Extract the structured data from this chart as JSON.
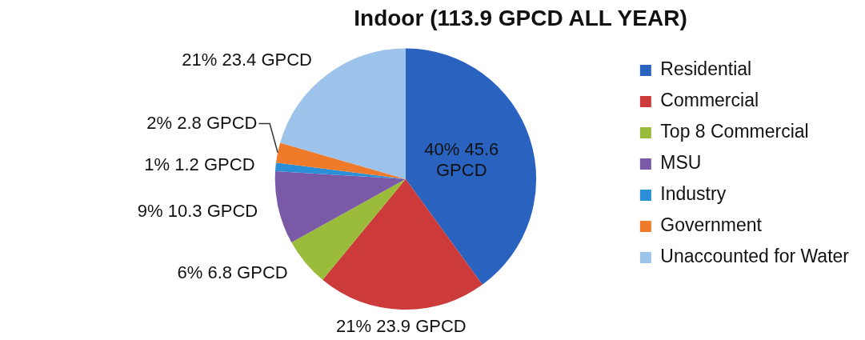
{
  "chart_data": {
    "type": "pie",
    "title": "Indoor (113.9 GPCD ALL YEAR)",
    "categories": [
      "Residential",
      "Commercial",
      "Top 8 Commercial",
      "MSU",
      "Industry",
      "Government",
      "Unaccounted for Water"
    ],
    "values": [
      45.6,
      23.9,
      6.8,
      10.3,
      1.2,
      2.8,
      23.4
    ],
    "value_labels": [
      "40% 45.6 GPCD",
      "21% 23.9 GPCD",
      "6% 6.8 GPCD",
      "9% 10.3 GPCD",
      "1% 1.2 GPCD",
      "2% 2.8 GPCD",
      "21% 23.4 GPCD"
    ],
    "colors": [
      "#2a62c0",
      "#cc3a3a",
      "#9bbb3a",
      "#7a5aa6",
      "#2a8fd6",
      "#ef7a2a",
      "#9ec3ea"
    ],
    "legend": "right"
  }
}
